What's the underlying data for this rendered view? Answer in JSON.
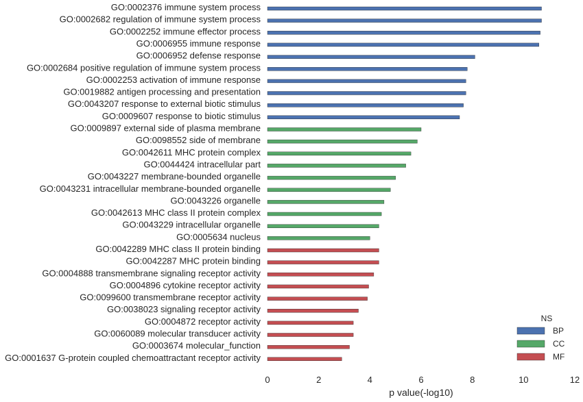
{
  "chart_data": {
    "type": "bar",
    "orientation": "horizontal",
    "xlabel": "p value(-log10)",
    "xlim": [
      0,
      12
    ],
    "xticks": [
      0,
      2,
      4,
      6,
      8,
      10,
      12
    ],
    "grid": false,
    "legend": {
      "title": "NS",
      "placement": "bottom-right",
      "entries": [
        {
          "name": "BP",
          "color": "#4c72b0"
        },
        {
          "name": "CC",
          "color": "#55a868"
        },
        {
          "name": "MF",
          "color": "#c44e52"
        }
      ]
    },
    "bars": [
      {
        "label": "GO:0002376 immune system process",
        "value": 10.7,
        "ns": "BP"
      },
      {
        "label": "GO:0002682 regulation of immune system process",
        "value": 10.7,
        "ns": "BP"
      },
      {
        "label": "GO:0002252 immune effector process",
        "value": 10.65,
        "ns": "BP"
      },
      {
        "label": "GO:0006955 immune response",
        "value": 10.6,
        "ns": "BP"
      },
      {
        "label": "GO:0006952 defense response",
        "value": 8.1,
        "ns": "BP"
      },
      {
        "label": "GO:0002684 positive regulation of immune system process",
        "value": 7.8,
        "ns": "BP"
      },
      {
        "label": "GO:0002253 activation of immune response",
        "value": 7.75,
        "ns": "BP"
      },
      {
        "label": "GO:0019882 antigen processing and presentation",
        "value": 7.75,
        "ns": "BP"
      },
      {
        "label": "GO:0043207 response to external biotic stimulus",
        "value": 7.65,
        "ns": "BP"
      },
      {
        "label": "GO:0009607 response to biotic stimulus",
        "value": 7.5,
        "ns": "BP"
      },
      {
        "label": "GO:0009897 external side of plasma membrane",
        "value": 6.0,
        "ns": "CC"
      },
      {
        "label": "GO:0098552 side of membrane",
        "value": 5.85,
        "ns": "CC"
      },
      {
        "label": "GO:0042611 MHC protein complex",
        "value": 5.6,
        "ns": "CC"
      },
      {
        "label": "GO:0044424 intracellular part",
        "value": 5.4,
        "ns": "CC"
      },
      {
        "label": "GO:0043227 membrane-bounded organelle",
        "value": 5.0,
        "ns": "CC"
      },
      {
        "label": "GO:0043231 intracellular membrane-bounded organelle",
        "value": 4.8,
        "ns": "CC"
      },
      {
        "label": "GO:0043226 organelle",
        "value": 4.55,
        "ns": "CC"
      },
      {
        "label": "GO:0042613 MHC class II protein complex",
        "value": 4.45,
        "ns": "CC"
      },
      {
        "label": "GO:0043229 intracellular organelle",
        "value": 4.35,
        "ns": "CC"
      },
      {
        "label": "GO:0005634 nucleus",
        "value": 4.0,
        "ns": "CC"
      },
      {
        "label": "GO:0042289 MHC class II protein binding",
        "value": 4.35,
        "ns": "MF"
      },
      {
        "label": "GO:0042287 MHC protein binding",
        "value": 4.35,
        "ns": "MF"
      },
      {
        "label": "GO:0004888 transmembrane signaling receptor activity",
        "value": 4.15,
        "ns": "MF"
      },
      {
        "label": "GO:0004896 cytokine receptor activity",
        "value": 3.95,
        "ns": "MF"
      },
      {
        "label": "GO:0099600 transmembrane receptor activity",
        "value": 3.9,
        "ns": "MF"
      },
      {
        "label": "GO:0038023 signaling receptor activity",
        "value": 3.55,
        "ns": "MF"
      },
      {
        "label": "GO:0004872 receptor activity",
        "value": 3.35,
        "ns": "MF"
      },
      {
        "label": "GO:0060089 molecular transducer activity",
        "value": 3.35,
        "ns": "MF"
      },
      {
        "label": "GO:0003674 molecular_function",
        "value": 3.2,
        "ns": "MF"
      },
      {
        "label": "GO:0001637 G-protein coupled chemoattractant receptor activity",
        "value": 2.9,
        "ns": "MF"
      }
    ]
  }
}
